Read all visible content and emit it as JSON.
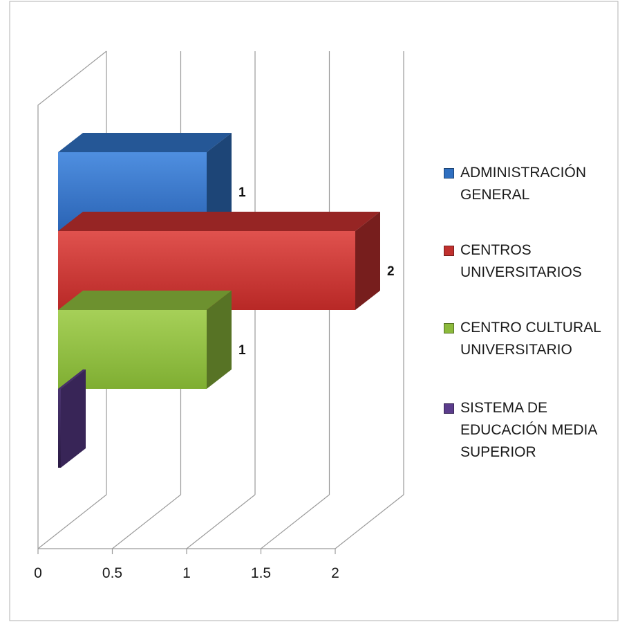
{
  "chart_data": {
    "type": "bar",
    "orientation": "horizontal",
    "three_d": true,
    "xlim": [
      0,
      2
    ],
    "x_ticks": [
      "0",
      "0.5",
      "1",
      "1.5",
      "2"
    ],
    "series": [
      {
        "name": "ADMINISTRACIÓN GENERAL",
        "value": 1,
        "label": "1",
        "color": "#2f6fc0"
      },
      {
        "name": "CENTROS UNIVERSITARIOS",
        "value": 2,
        "label": "2",
        "color": "#c0302e"
      },
      {
        "name": "CENTRO CULTURAL UNIVERSITARIO",
        "value": 1,
        "label": "1",
        "color": "#8cba3c"
      },
      {
        "name": "SISTEMA DE EDUCACIÓN MEDIA SUPERIOR",
        "value": 0,
        "label": "",
        "color": "#5b3c8c"
      }
    ],
    "grid": true,
    "legend_position": "right"
  }
}
